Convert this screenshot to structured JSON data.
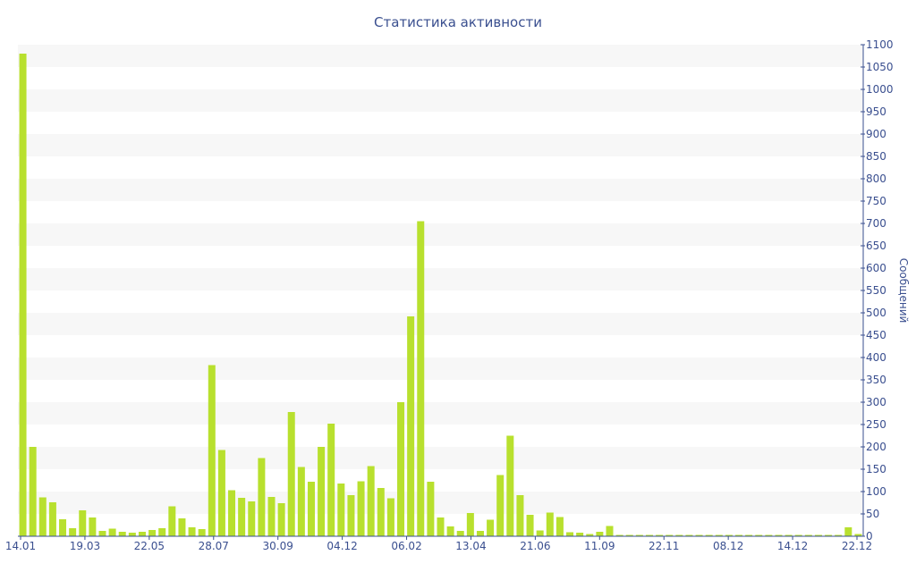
{
  "chart_data": {
    "type": "bar",
    "title": "Статистика активности",
    "ylabel": "Сообщений",
    "ylim": [
      0,
      1100
    ],
    "yticks": [
      0,
      50,
      100,
      150,
      200,
      250,
      300,
      350,
      400,
      450,
      500,
      550,
      600,
      650,
      700,
      750,
      800,
      850,
      900,
      950,
      1000,
      1050,
      1100
    ],
    "x_tick_labels": [
      "14.01",
      "19.03",
      "22.05",
      "28.07",
      "30.09",
      "04.12",
      "06.02",
      "13.04",
      "21.06",
      "11.09",
      "22.11",
      "08.12",
      "14.12",
      "22.12"
    ],
    "grid": "horizontal bands",
    "colors": {
      "bar": "#b8e02e",
      "band": "#f7f7f7",
      "axis": "#3a4f8f"
    },
    "values": [
      1080,
      200,
      87,
      76,
      38,
      18,
      58,
      42,
      12,
      17,
      10,
      8,
      10,
      14,
      18,
      67,
      40,
      20,
      16,
      383,
      193,
      103,
      86,
      78,
      175,
      88,
      74,
      278,
      155,
      122,
      200,
      252,
      118,
      92,
      123,
      157,
      108,
      85,
      300,
      492,
      705,
      122,
      42,
      22,
      12,
      52,
      12,
      37,
      137,
      225,
      92,
      48,
      13,
      53,
      43,
      9,
      8,
      5,
      10,
      23,
      3,
      3,
      3,
      3,
      3,
      3,
      3,
      3,
      3,
      3,
      3,
      3,
      3,
      3,
      3,
      3,
      3,
      3,
      3,
      3,
      3,
      3,
      3,
      20,
      5
    ]
  }
}
